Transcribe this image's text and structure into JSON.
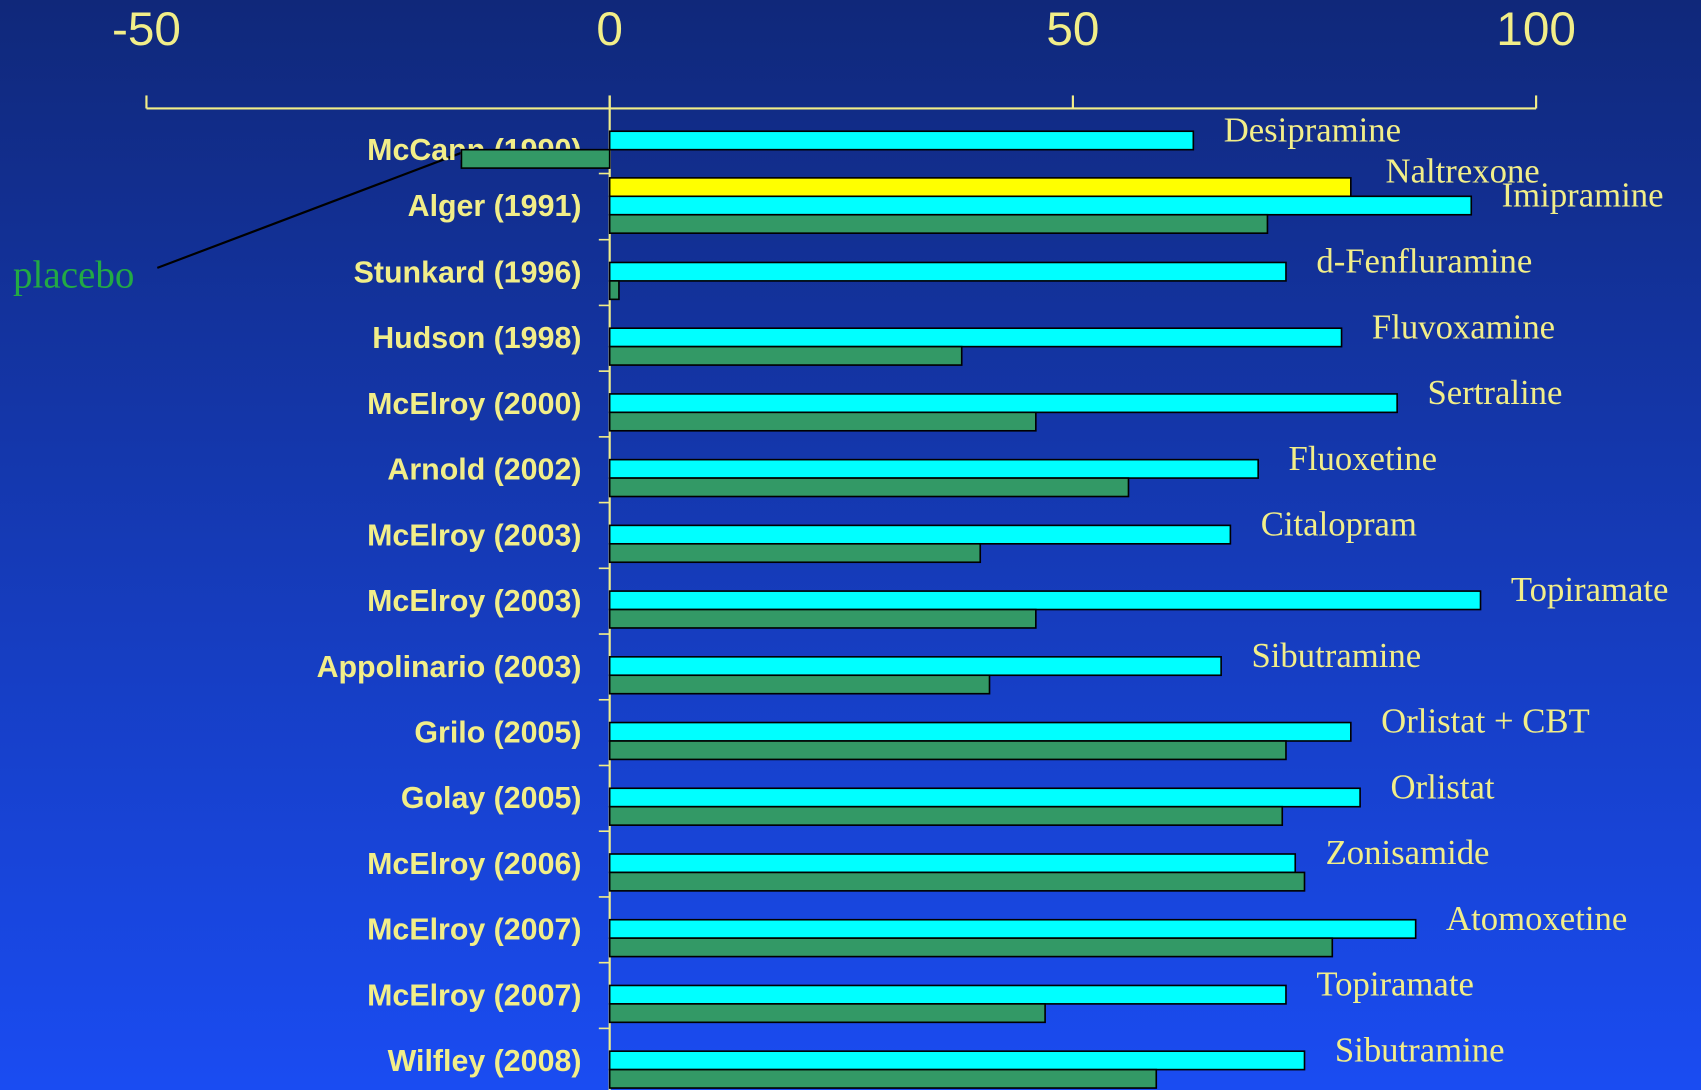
{
  "chart_data": {
    "type": "bar",
    "orientation": "horizontal",
    "categories": [
      "McCann (1990)",
      "Alger (1991)",
      "Stunkard (1996)",
      "Hudson (1998)",
      "McElroy (2000)",
      "Arnold (2002)",
      "McElroy (2003)",
      "McElroy (2003)",
      "Appolinario (2003)",
      "Grilo (2005)",
      "Golay (2005)",
      "McElroy (2006)",
      "McElroy (2007)",
      "McElroy (2007)",
      "Wilfley (2008)"
    ],
    "drug_labels": [
      "Desipramine",
      "Imipramine",
      "d-Fenfluramine",
      "Fluvoxamine",
      "Sertraline",
      "Fluoxetine",
      "Citalopram",
      "Topiramate",
      "Sibutramine",
      "Orlistat + CBT",
      "Orlistat",
      "Zonisamide",
      "Atomoxetine",
      "Topiramate",
      "Sibutramine"
    ],
    "series": [
      {
        "color": "#00ffff",
        "values": [
          63,
          93,
          73,
          79,
          85,
          70,
          67,
          94,
          66,
          80,
          81,
          74,
          87,
          73,
          75
        ]
      },
      {
        "name": "placebo",
        "color": "#339966",
        "values": [
          -16,
          71,
          1,
          38,
          46,
          56,
          40,
          46,
          41,
          73,
          72.6,
          75,
          78,
          47,
          59
        ]
      },
      {
        "name": "Naltrexone",
        "color": "#ffff00",
        "values": [
          null,
          80,
          null,
          null,
          null,
          null,
          null,
          null,
          null,
          null,
          null,
          null,
          null,
          null,
          null
        ]
      }
    ],
    "xlim": [
      -50,
      100
    ],
    "xticks": [
      -50,
      0,
      50,
      100
    ]
  }
}
